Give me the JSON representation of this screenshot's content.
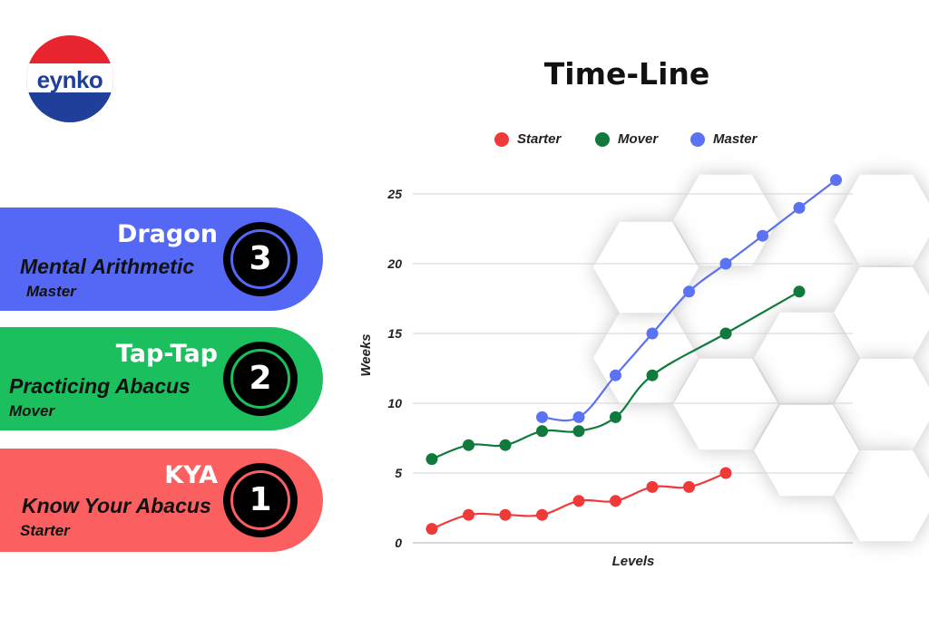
{
  "logo": {
    "text": "eynko",
    "colors": {
      "top": "#e8242f",
      "bottom": "#1f3f9b"
    }
  },
  "levels": [
    {
      "title": "Dragon",
      "subtitle": "Mental Arithmetic",
      "tier": "Master",
      "number": "3",
      "color": "#5468f5"
    },
    {
      "title": "Tap-Tap",
      "subtitle": "Practicing Abacus",
      "tier": "Mover",
      "number": "2",
      "color": "#1cbf5e"
    },
    {
      "title": "KYA",
      "subtitle": "Know Your Abacus",
      "tier": "Starter",
      "number": "1",
      "color": "#fb5f5f"
    }
  ],
  "chart_data": {
    "type": "line",
    "title": "Time-Line",
    "xlabel": "Levels",
    "ylabel": "Weeks",
    "ylim": [
      0,
      25
    ],
    "yticks": [
      0,
      5,
      10,
      15,
      20,
      25
    ],
    "grid": true,
    "legend_position": "top",
    "series": [
      {
        "name": "Starter",
        "color": "#f03a3a",
        "x": [
          1,
          2,
          3,
          4,
          5,
          6,
          7,
          8,
          9
        ],
        "values": [
          1,
          2,
          2,
          2,
          3,
          3,
          4,
          4,
          5
        ]
      },
      {
        "name": "Mover",
        "color": "#0f7a3c",
        "x": [
          1,
          2,
          3,
          4,
          5,
          6,
          7,
          9,
          11
        ],
        "values": [
          6,
          7,
          7,
          8,
          8,
          9,
          12,
          15,
          18
        ]
      },
      {
        "name": "Master",
        "color": "#5b72f2",
        "x": [
          4,
          5,
          6,
          7,
          8,
          9,
          10,
          11,
          12
        ],
        "values": [
          9,
          9,
          12,
          15,
          18,
          20,
          22,
          24,
          26
        ]
      }
    ]
  }
}
